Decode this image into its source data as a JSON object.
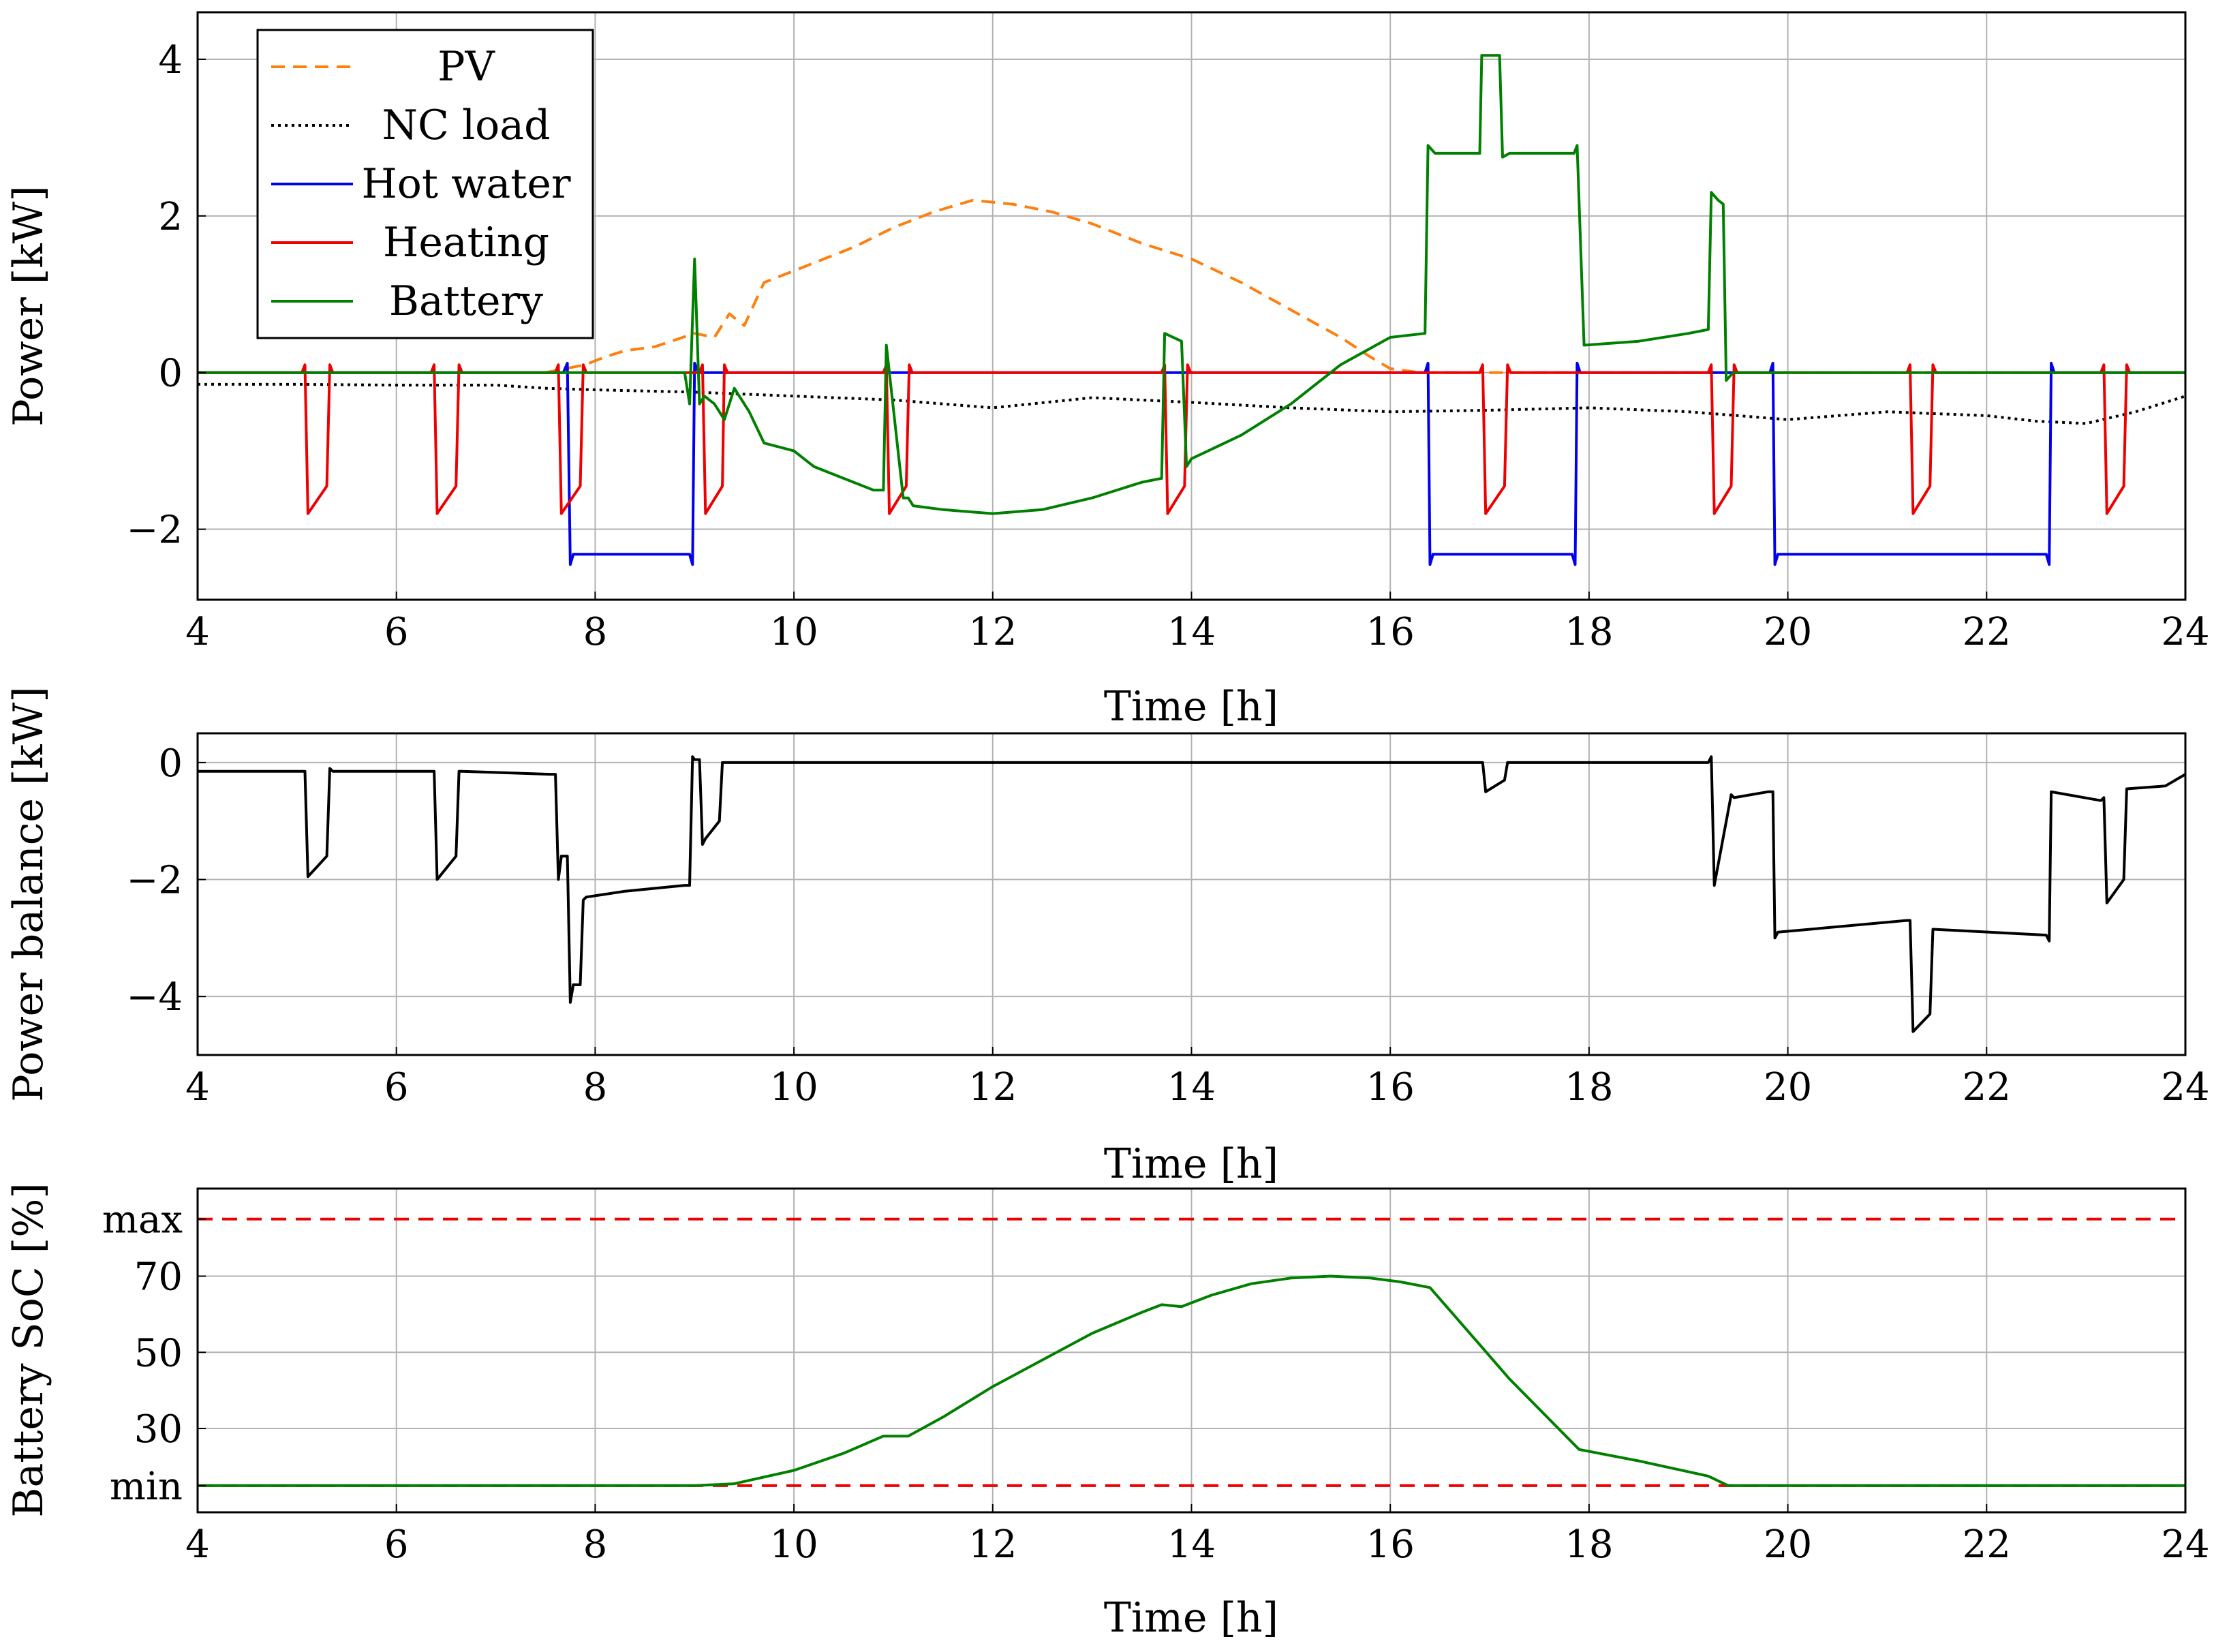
{
  "colors": {
    "pv": "#ff7f0e",
    "nc_load": "#000000",
    "hot_water": "#0000ee",
    "heating": "#ee0000",
    "battery": "#008000",
    "balance": "#000000",
    "limit": "#ee0000"
  },
  "chart_data": [
    {
      "type": "line",
      "xlabel": "Time [h]",
      "ylabel": "Power [kW]",
      "xlim": [
        4,
        24
      ],
      "ylim": [
        -2.9,
        4.6
      ],
      "xticks": [
        "4",
        "6",
        "8",
        "10",
        "12",
        "14",
        "16",
        "18",
        "20",
        "22",
        "24"
      ],
      "yticks": [
        {
          "value": -2,
          "label": "−2"
        },
        {
          "value": 0,
          "label": "0"
        },
        {
          "value": 2,
          "label": "2"
        },
        {
          "value": 4,
          "label": "4"
        }
      ],
      "legend_position": "top-left",
      "series": [
        {
          "name": "PV",
          "key": "pv",
          "style": "dashed",
          "x": [
            4,
            7.5,
            7.7,
            7.9,
            8.1,
            8.3,
            8.6,
            9.0,
            9.2,
            9.35,
            9.5,
            9.7,
            10.0,
            10.3,
            10.6,
            11.0,
            11.4,
            11.8,
            12.2,
            12.6,
            13.0,
            13.5,
            14.0,
            14.5,
            15.0,
            15.5,
            15.8,
            16.0,
            16.3,
            24
          ],
          "y": [
            0,
            0,
            0.05,
            0.1,
            0.2,
            0.28,
            0.33,
            0.5,
            0.45,
            0.75,
            0.6,
            1.15,
            1.3,
            1.45,
            1.6,
            1.85,
            2.05,
            2.2,
            2.15,
            2.05,
            1.9,
            1.65,
            1.45,
            1.15,
            0.8,
            0.45,
            0.2,
            0.05,
            0,
            0
          ]
        },
        {
          "name": "NC load",
          "key": "nc_load",
          "style": "dotted",
          "x": [
            4,
            5,
            6,
            7,
            7.5,
            8,
            9,
            10,
            11,
            12,
            13,
            14,
            15,
            16,
            17,
            18,
            19,
            19.5,
            20,
            21,
            22,
            22.5,
            23,
            23.5,
            24
          ],
          "y": [
            -0.15,
            -0.15,
            -0.16,
            -0.16,
            -0.2,
            -0.22,
            -0.25,
            -0.3,
            -0.35,
            -0.45,
            -0.32,
            -0.38,
            -0.45,
            -0.5,
            -0.48,
            -0.45,
            -0.5,
            -0.55,
            -0.6,
            -0.5,
            -0.55,
            -0.62,
            -0.65,
            -0.5,
            -0.3
          ]
        },
        {
          "name": "Hot water",
          "key": "hot_water",
          "style": "solid",
          "x": [
            4,
            7.68,
            7.72,
            7.75,
            7.78,
            8.95,
            8.98,
            9.0,
            9.04,
            16.35,
            16.38,
            16.4,
            16.43,
            17.83,
            17.86,
            17.88,
            17.91,
            19.82,
            19.85,
            19.87,
            19.9,
            22.6,
            22.63,
            22.65,
            22.68,
            24
          ],
          "y": [
            0,
            0,
            0.12,
            -2.45,
            -2.32,
            -2.32,
            -2.45,
            0.12,
            0,
            0,
            0.12,
            -2.45,
            -2.32,
            -2.32,
            -2.45,
            0.12,
            0,
            0,
            0.12,
            -2.45,
            -2.32,
            -2.32,
            -2.45,
            0.12,
            0,
            0
          ]
        },
        {
          "name": "Heating",
          "key": "heating",
          "style": "solid",
          "x": [
            4,
            5.05,
            5.08,
            5.11,
            5.3,
            5.33,
            5.36,
            6.35,
            6.38,
            6.41,
            6.6,
            6.63,
            6.66,
            7.6,
            7.63,
            7.66,
            7.85,
            7.88,
            7.91,
            9.05,
            9.08,
            9.11,
            9.28,
            9.3,
            9.33,
            10.9,
            10.93,
            10.96,
            11.13,
            11.16,
            11.19,
            13.7,
            13.73,
            13.76,
            13.93,
            13.96,
            13.99,
            16.9,
            16.93,
            16.96,
            17.15,
            17.18,
            17.21,
            19.2,
            19.23,
            19.26,
            19.43,
            19.46,
            19.49,
            21.2,
            21.23,
            21.26,
            21.43,
            21.46,
            21.49,
            23.15,
            23.18,
            23.21,
            23.38,
            23.41,
            23.44,
            24
          ],
          "y": [
            0,
            0,
            0.1,
            -1.8,
            -1.45,
            0.1,
            0,
            0,
            0.1,
            -1.8,
            -1.45,
            0.1,
            0,
            0,
            0.1,
            -1.8,
            -1.45,
            0.1,
            0,
            0,
            0.1,
            -1.8,
            -1.45,
            0.1,
            0,
            0,
            0.1,
            -1.8,
            -1.45,
            0.1,
            0,
            0,
            0.1,
            -1.8,
            -1.45,
            0.1,
            0,
            0,
            0.1,
            -1.8,
            -1.45,
            0.1,
            0,
            0,
            0.1,
            -1.8,
            -1.45,
            0.1,
            0,
            0,
            0.1,
            -1.8,
            -1.45,
            0.1,
            0,
            0,
            0.1,
            -1.8,
            -1.45,
            0.1,
            0,
            0
          ]
        },
        {
          "name": "Battery",
          "key": "battery",
          "style": "solid",
          "x": [
            4,
            8.9,
            8.95,
            9.0,
            9.05,
            9.1,
            9.2,
            9.3,
            9.4,
            9.55,
            9.7,
            10.0,
            10.2,
            10.5,
            10.8,
            10.9,
            10.93,
            11.1,
            11.15,
            11.2,
            11.5,
            12.0,
            12.5,
            13.0,
            13.5,
            13.7,
            13.73,
            13.9,
            13.95,
            14.0,
            14.5,
            15.0,
            15.5,
            16.0,
            16.35,
            16.38,
            16.45,
            16.9,
            16.92,
            17.1,
            17.13,
            17.2,
            17.85,
            17.88,
            17.95,
            18.5,
            19.0,
            19.2,
            19.23,
            19.3,
            19.35,
            19.38,
            19.45,
            24
          ],
          "y": [
            0,
            0,
            -0.4,
            1.45,
            -0.4,
            -0.3,
            -0.4,
            -0.6,
            -0.2,
            -0.5,
            -0.9,
            -1.0,
            -1.2,
            -1.35,
            -1.5,
            -1.5,
            0.35,
            -1.6,
            -1.6,
            -1.7,
            -1.75,
            -1.8,
            -1.75,
            -1.6,
            -1.4,
            -1.35,
            0.5,
            0.4,
            -1.2,
            -1.1,
            -0.8,
            -0.4,
            0.1,
            0.45,
            0.5,
            2.9,
            2.8,
            2.8,
            4.05,
            4.05,
            2.75,
            2.8,
            2.8,
            2.9,
            0.35,
            0.4,
            0.5,
            0.55,
            2.3,
            2.2,
            2.15,
            -0.1,
            0,
            0
          ]
        }
      ],
      "legend": [
        "PV",
        "NC load",
        "Hot water",
        "Heating",
        "Battery"
      ]
    },
    {
      "type": "line",
      "xlabel": "Time [h]",
      "ylabel": "Power balance [kW]",
      "xlim": [
        4,
        24
      ],
      "ylim": [
        -5,
        0.5
      ],
      "xticks": [
        "4",
        "6",
        "8",
        "10",
        "12",
        "14",
        "16",
        "18",
        "20",
        "22",
        "24"
      ],
      "yticks": [
        {
          "value": -4,
          "label": "−4"
        },
        {
          "value": -2,
          "label": "−2"
        },
        {
          "value": 0,
          "label": "0"
        }
      ],
      "series": [
        {
          "name": "Power balance",
          "key": "balance",
          "style": "solid",
          "x": [
            4,
            5.05,
            5.08,
            5.11,
            5.3,
            5.33,
            5.36,
            6.35,
            6.38,
            6.41,
            6.6,
            6.63,
            6.66,
            7.55,
            7.6,
            7.63,
            7.66,
            7.72,
            7.75,
            7.78,
            7.85,
            7.88,
            7.91,
            8.3,
            8.9,
            8.95,
            8.98,
            9.0,
            9.05,
            9.08,
            9.11,
            9.25,
            9.28,
            9.3,
            16.9,
            16.93,
            16.96,
            17.15,
            17.18,
            19.2,
            19.23,
            19.26,
            19.43,
            19.46,
            19.8,
            19.85,
            19.87,
            19.9,
            21.2,
            21.23,
            21.26,
            21.43,
            21.46,
            22.6,
            22.63,
            22.65,
            23.15,
            23.18,
            23.21,
            23.38,
            23.41,
            23.8,
            24
          ],
          "y": [
            -0.15,
            -0.15,
            -0.15,
            -1.95,
            -1.6,
            -0.1,
            -0.15,
            -0.15,
            -0.15,
            -2.0,
            -1.6,
            -0.15,
            -0.15,
            -0.2,
            -0.2,
            -2.0,
            -1.6,
            -1.6,
            -4.1,
            -3.8,
            -3.8,
            -2.35,
            -2.3,
            -2.2,
            -2.1,
            -2.1,
            0.1,
            0.05,
            0.05,
            -1.4,
            -1.3,
            -1.0,
            0,
            0,
            0,
            0,
            -0.5,
            -0.3,
            0,
            0,
            0.1,
            -2.1,
            -0.55,
            -0.6,
            -0.5,
            -0.5,
            -3.0,
            -2.9,
            -2.7,
            -2.7,
            -4.6,
            -4.3,
            -2.85,
            -2.95,
            -3.05,
            -0.5,
            -0.65,
            -0.6,
            -2.4,
            -2.0,
            -0.45,
            -0.4,
            -0.2
          ]
        }
      ]
    },
    {
      "type": "line",
      "xlabel": "Time [h]",
      "ylabel": "Battery SoC [%]",
      "xlim": [
        4,
        24
      ],
      "ylim": [
        8,
        93
      ],
      "xticks": [
        "4",
        "6",
        "8",
        "10",
        "12",
        "14",
        "16",
        "18",
        "20",
        "22",
        "24"
      ],
      "yticks": [
        {
          "value": 15,
          "label": "min"
        },
        {
          "value": 30,
          "label": "30"
        },
        {
          "value": 50,
          "label": "50"
        },
        {
          "value": 70,
          "label": "70"
        },
        {
          "value": 85,
          "label": "max"
        }
      ],
      "limits": {
        "min": 15,
        "max": 85
      },
      "series": [
        {
          "name": "Battery SoC",
          "key": "battery",
          "style": "solid",
          "x": [
            4,
            9.0,
            9.4,
            10.0,
            10.5,
            10.9,
            11.15,
            11.5,
            12.0,
            12.5,
            13.0,
            13.5,
            13.7,
            13.9,
            14.2,
            14.6,
            15.0,
            15.4,
            15.8,
            16.1,
            16.4,
            16.9,
            17.2,
            17.9,
            18.5,
            19.2,
            19.4,
            24
          ],
          "y": [
            15,
            15,
            15.5,
            19,
            23.5,
            28,
            28,
            33,
            41,
            48,
            55,
            60.5,
            62.5,
            62,
            65,
            68,
            69.5,
            70,
            69.5,
            68.5,
            67,
            52,
            43,
            24.5,
            21.5,
            17.5,
            15,
            15
          ]
        }
      ]
    }
  ]
}
